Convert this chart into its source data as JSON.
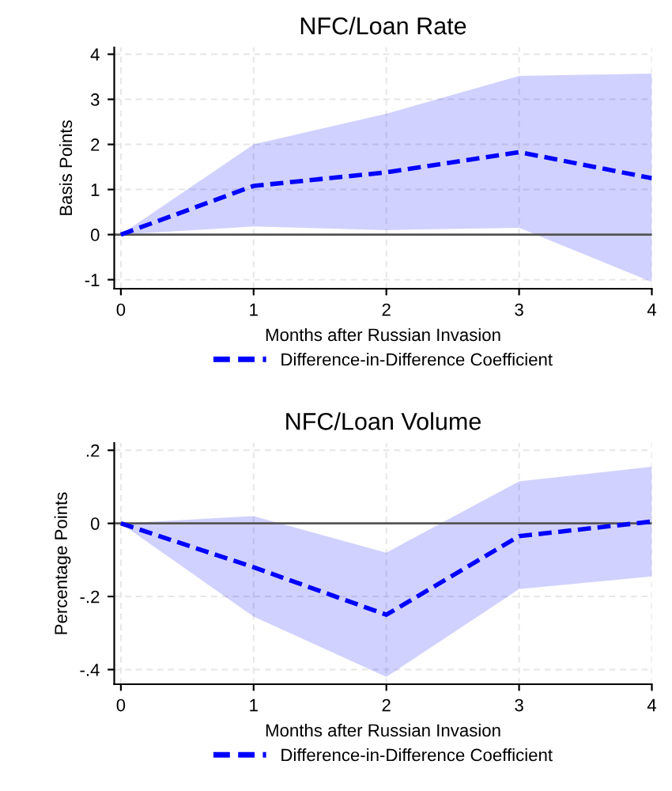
{
  "chart_data": [
    {
      "type": "line",
      "title": "NFC/Loan Rate",
      "xlabel": "Months after Russian Invasion",
      "ylabel": "Basis Points",
      "x": [
        0,
        1,
        2,
        3,
        4
      ],
      "series": [
        {
          "name": "Difference-in-Difference Coefficient",
          "color": "#0000ff",
          "values": [
            0,
            1.08,
            1.38,
            1.83,
            1.25
          ],
          "lower": [
            0,
            0.18,
            0.1,
            0.15,
            -1.05
          ],
          "upper": [
            0,
            2.0,
            2.68,
            3.52,
            3.57
          ]
        }
      ],
      "xlim": [
        -0.05,
        4
      ],
      "xticks": [
        0,
        1,
        2,
        3,
        4
      ],
      "ylim": [
        -1.2,
        4.15
      ],
      "yticks": [
        -1,
        0,
        1,
        2,
        3,
        4
      ],
      "ref_lines": [
        {
          "axis": "y",
          "value": 0,
          "color": "#555555"
        }
      ],
      "grid": true,
      "legend": "bottom",
      "line_style": "dashed",
      "marker": "none"
    },
    {
      "type": "line",
      "title": "NFC/Loan Volume",
      "xlabel": "Months after Russian Invasion",
      "ylabel": "Percentage Points",
      "x": [
        0,
        1,
        2,
        3,
        4
      ],
      "series": [
        {
          "name": "Difference-in-Difference Coefficient",
          "color": "#0000ff",
          "values": [
            0,
            -0.12,
            -0.25,
            -0.035,
            0.005
          ],
          "lower": [
            0,
            -0.255,
            -0.42,
            -0.18,
            -0.145
          ],
          "upper": [
            0,
            0.02,
            -0.08,
            0.115,
            0.155
          ]
        }
      ],
      "xlim": [
        -0.05,
        4
      ],
      "xticks": [
        0,
        1,
        2,
        3,
        4
      ],
      "ylim": [
        -0.44,
        0.22
      ],
      "yticks": [
        {
          "value": -0.4,
          "label": "-.4"
        },
        {
          "value": -0.2,
          "label": "-.2"
        },
        {
          "value": 0,
          "label": "0"
        },
        {
          "value": 0.2,
          "label": ".2"
        }
      ],
      "ref_lines": [
        {
          "axis": "y",
          "value": 0,
          "color": "#555555"
        }
      ],
      "grid": true,
      "legend": "bottom",
      "line_style": "dashed",
      "marker": "none"
    }
  ]
}
